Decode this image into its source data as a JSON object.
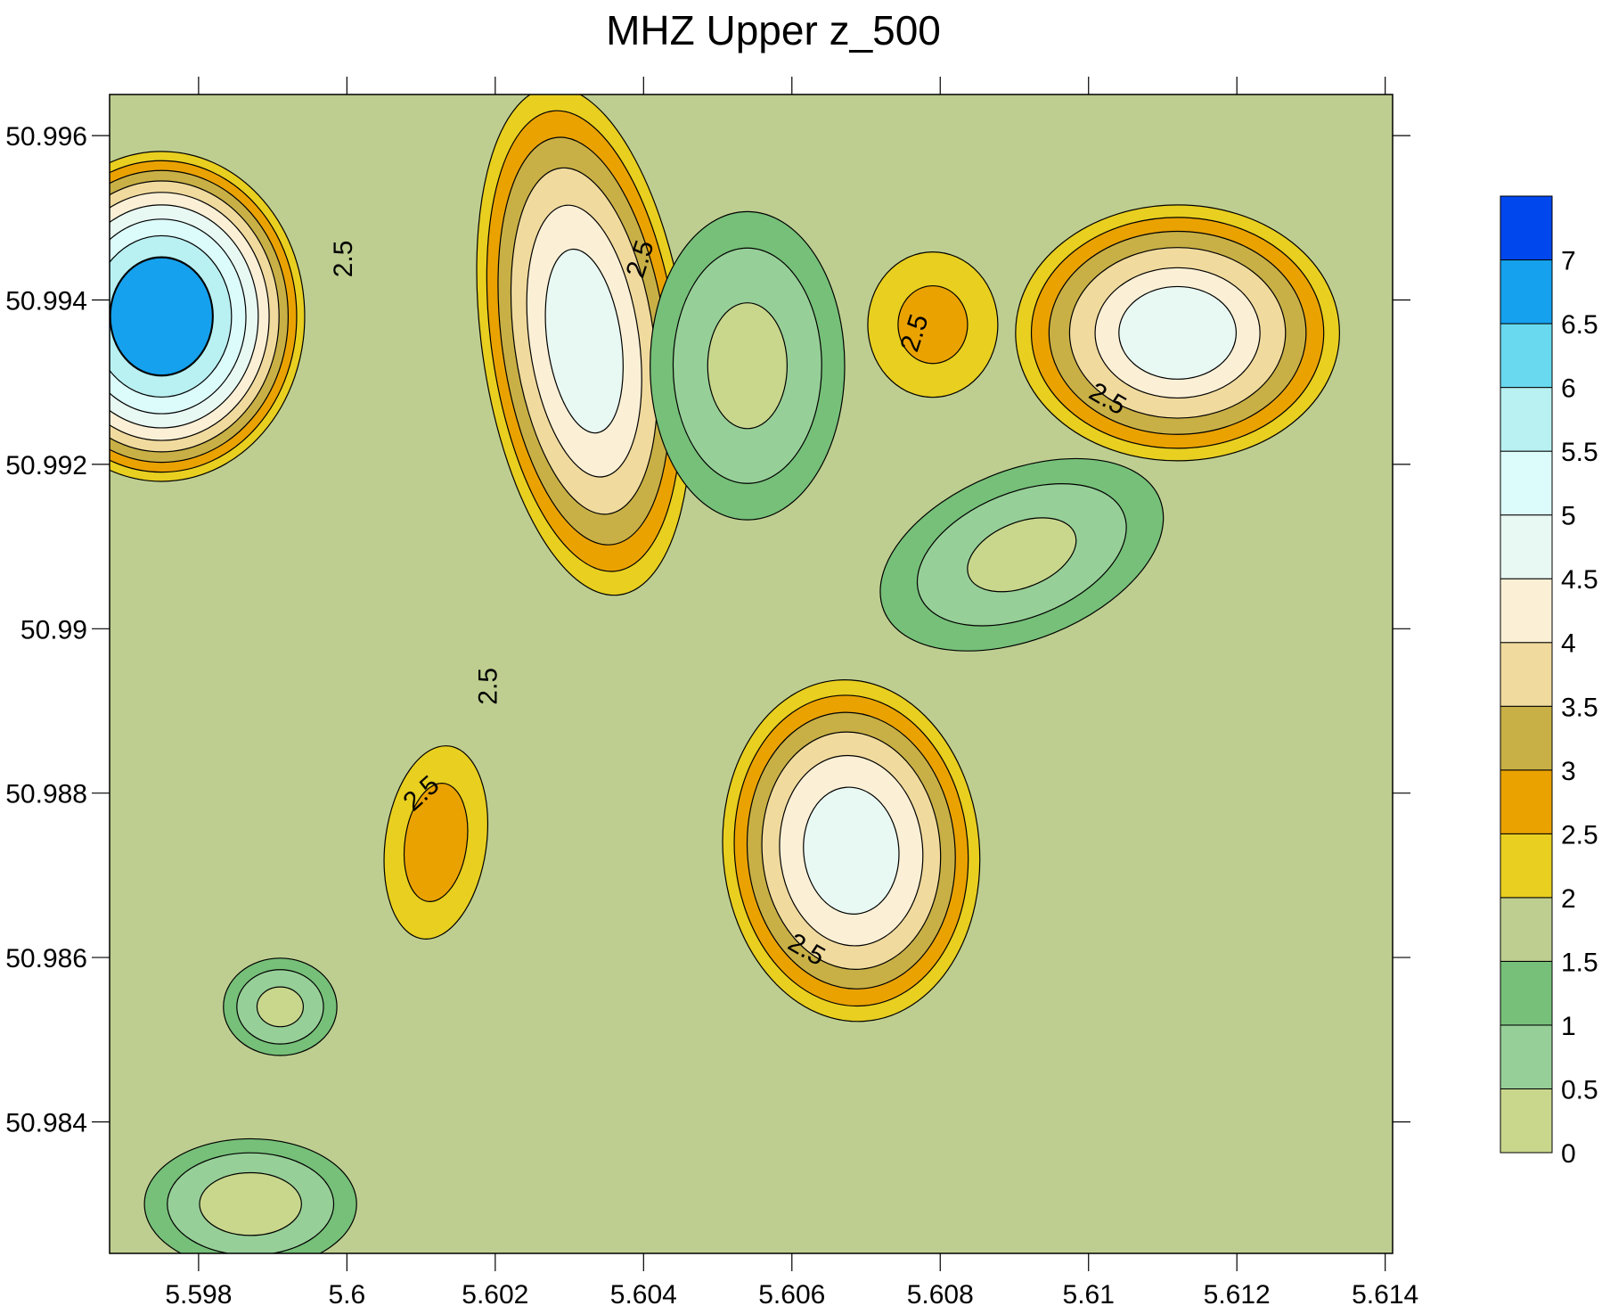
{
  "chart_data": {
    "type": "contour",
    "title": "MHZ Upper z_500",
    "xlabel": "",
    "ylabel": "",
    "xlim": [
      5.5968,
      5.6141
    ],
    "ylim": [
      50.9824,
      50.9965
    ],
    "x_ticks": [
      5.598,
      5.6,
      5.602,
      5.604,
      5.606,
      5.608,
      5.61,
      5.612,
      5.614
    ],
    "x_tick_labels": [
      "5.598",
      "5.6",
      "5.602",
      "5.604",
      "5.606",
      "5.608",
      "5.61",
      "5.612",
      "5.614"
    ],
    "y_ticks": [
      50.996,
      50.994,
      50.992,
      50.99,
      50.988,
      50.986,
      50.984
    ],
    "y_tick_labels": [
      "50.996",
      "50.994",
      "50.992",
      "50.99",
      "50.988",
      "50.986",
      "50.984"
    ],
    "background_level_range": [
      1.5,
      2
    ],
    "levels": [
      0,
      0.5,
      1,
      1.5,
      2,
      2.5,
      3,
      3.5,
      4,
      4.5,
      5,
      5.5,
      6,
      6.5,
      7
    ],
    "colorbar": {
      "placement": "right",
      "bins": [
        {
          "from": 0,
          "to": 0.5,
          "color": "#c9d78c"
        },
        {
          "from": 0.5,
          "to": 1,
          "color": "#97cf98"
        },
        {
          "from": 1,
          "to": 1.5,
          "color": "#76c079"
        },
        {
          "from": 1.5,
          "to": 2,
          "color": "#bece90"
        },
        {
          "from": 2,
          "to": 2.5,
          "color": "#e8cf20"
        },
        {
          "from": 2.5,
          "to": 3,
          "color": "#eaa200"
        },
        {
          "from": 3,
          "to": 3.5,
          "color": "#c8b046"
        },
        {
          "from": 3.5,
          "to": 4,
          "color": "#f0da9e"
        },
        {
          "from": 4,
          "to": 4.5,
          "color": "#fbf0d6"
        },
        {
          "from": 4.5,
          "to": 5,
          "color": "#e8f8f2"
        },
        {
          "from": 5,
          "to": 5.5,
          "color": "#dcfbfb"
        },
        {
          "from": 5.5,
          "to": 6,
          "color": "#b9f0f2"
        },
        {
          "from": 6,
          "to": 6.5,
          "color": "#69d9ef"
        },
        {
          "from": 6.5,
          "to": 7,
          "color": "#15a1ee"
        },
        {
          "from": 7,
          "to": 7.5,
          "color": "#0047ee"
        }
      ],
      "tick_labels": [
        "0",
        "0.5",
        "1",
        "1.5",
        "2",
        "2.5",
        "3",
        "3.5",
        "4",
        "4.5",
        "5",
        "5.5",
        "6",
        "6.5",
        "7"
      ]
    },
    "features": [
      {
        "kind": "max",
        "x": 5.5975,
        "y": 50.9938,
        "value": 6.6
      },
      {
        "kind": "max",
        "x": 5.6032,
        "y": 50.9935,
        "value": 4.8
      },
      {
        "kind": "max",
        "x": 5.6112,
        "y": 50.9936,
        "value": 4.7
      },
      {
        "kind": "max",
        "x": 5.6068,
        "y": 50.9873,
        "value": 4.9
      },
      {
        "kind": "max",
        "x": 5.6079,
        "y": 50.9937,
        "value": 2.7
      },
      {
        "kind": "max",
        "x": 5.6012,
        "y": 50.9874,
        "value": 2.8
      },
      {
        "kind": "min",
        "x": 5.6054,
        "y": 50.9932,
        "value": 0.3
      },
      {
        "kind": "min",
        "x": 5.6091,
        "y": 50.9909,
        "value": 0.4
      },
      {
        "kind": "min",
        "x": 5.5991,
        "y": 50.9854,
        "value": 0.3
      },
      {
        "kind": "min",
        "x": 5.5987,
        "y": 50.983,
        "value": 0.2
      }
    ],
    "contour_labels": [
      {
        "text": "2.5",
        "x": 5.59995,
        "y": 50.9945,
        "angle": -90
      },
      {
        "text": "2.5",
        "x": 5.60395,
        "y": 50.9945,
        "angle": -72
      },
      {
        "text": "2.5",
        "x": 5.60765,
        "y": 50.9936,
        "angle": -72
      },
      {
        "text": "2.5",
        "x": 5.61026,
        "y": 50.9928,
        "angle": 30
      },
      {
        "text": "2.5",
        "x": 5.6019,
        "y": 50.9893,
        "angle": -90
      },
      {
        "text": "2.5",
        "x": 5.601,
        "y": 50.988,
        "angle": -42
      },
      {
        "text": "2.5",
        "x": 5.6062,
        "y": 50.9861,
        "angle": 30
      }
    ]
  }
}
